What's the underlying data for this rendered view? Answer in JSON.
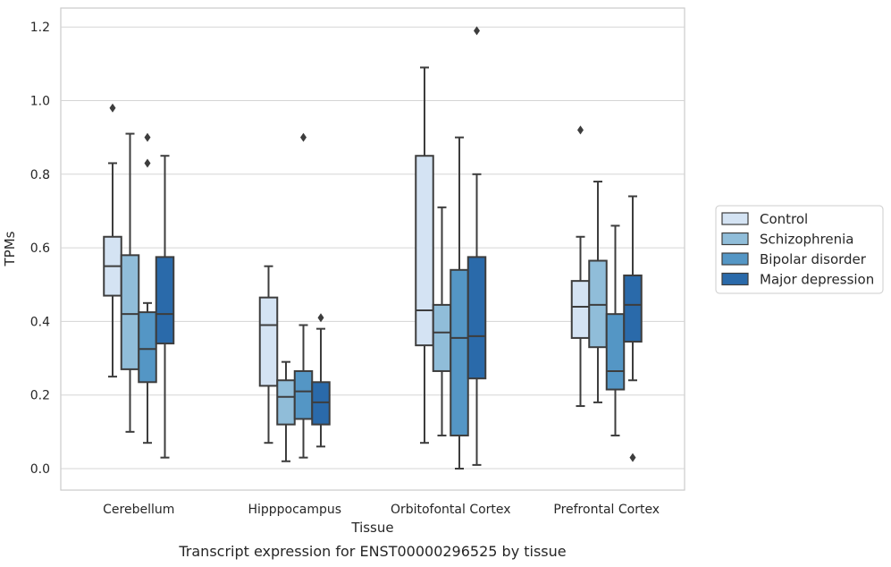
{
  "caption": "Transcript expression for ENST00000296525 by tissue",
  "chart_data": {
    "type": "boxplot",
    "xlabel": "Tissue",
    "ylabel": "TPMs",
    "ylim": [
      -0.06,
      1.25
    ],
    "yticks": [
      "0.0",
      "0.2",
      "0.4",
      "0.6",
      "0.8",
      "1.0",
      "1.2"
    ],
    "grid": true,
    "legend_position": "right",
    "categories": [
      "Cerebellum",
      "Hipppocampus",
      "Orbitofontal Cortex",
      "Prefrontal Cortex"
    ],
    "series": [
      {
        "name": "Control",
        "color": "#d4e3f3",
        "boxes": [
          {
            "whislo": 0.25,
            "q1": 0.47,
            "med": 0.55,
            "q3": 0.63,
            "whishi": 0.83,
            "fliers": [
              0.98
            ]
          },
          {
            "whislo": 0.07,
            "q1": 0.225,
            "med": 0.39,
            "q3": 0.465,
            "whishi": 0.55,
            "fliers": []
          },
          {
            "whislo": 0.07,
            "q1": 0.335,
            "med": 0.43,
            "q3": 0.85,
            "whishi": 1.09,
            "fliers": []
          },
          {
            "whislo": 0.17,
            "q1": 0.355,
            "med": 0.44,
            "q3": 0.51,
            "whishi": 0.63,
            "fliers": [
              0.92
            ]
          }
        ]
      },
      {
        "name": "Schizophrenia",
        "color": "#90bdd9",
        "boxes": [
          {
            "whislo": 0.1,
            "q1": 0.27,
            "med": 0.42,
            "q3": 0.58,
            "whishi": 0.91,
            "fliers": []
          },
          {
            "whislo": 0.02,
            "q1": 0.12,
            "med": 0.195,
            "q3": 0.24,
            "whishi": 0.29,
            "fliers": []
          },
          {
            "whislo": 0.09,
            "q1": 0.265,
            "med": 0.37,
            "q3": 0.445,
            "whishi": 0.71,
            "fliers": []
          },
          {
            "whislo": 0.18,
            "q1": 0.33,
            "med": 0.445,
            "q3": 0.565,
            "whishi": 0.78,
            "fliers": []
          }
        ]
      },
      {
        "name": "Bipolar disorder",
        "color": "#5496c5",
        "boxes": [
          {
            "whislo": 0.07,
            "q1": 0.235,
            "med": 0.325,
            "q3": 0.425,
            "whishi": 0.45,
            "fliers": [
              0.83,
              0.9
            ]
          },
          {
            "whislo": 0.03,
            "q1": 0.135,
            "med": 0.21,
            "q3": 0.265,
            "whishi": 0.39,
            "fliers": [
              0.9
            ]
          },
          {
            "whislo": 0.0,
            "q1": 0.09,
            "med": 0.355,
            "q3": 0.54,
            "whishi": 0.9,
            "fliers": []
          },
          {
            "whislo": 0.09,
            "q1": 0.215,
            "med": 0.265,
            "q3": 0.42,
            "whishi": 0.66,
            "fliers": []
          }
        ]
      },
      {
        "name": "Major depression",
        "color": "#2a6aaa",
        "boxes": [
          {
            "whislo": 0.03,
            "q1": 0.34,
            "med": 0.42,
            "q3": 0.575,
            "whishi": 0.85,
            "fliers": []
          },
          {
            "whislo": 0.06,
            "q1": 0.12,
            "med": 0.18,
            "q3": 0.235,
            "whishi": 0.38,
            "fliers": [
              0.41
            ]
          },
          {
            "whislo": 0.01,
            "q1": 0.245,
            "med": 0.36,
            "q3": 0.575,
            "whishi": 0.8,
            "fliers": [
              1.19
            ]
          },
          {
            "whislo": 0.24,
            "q1": 0.345,
            "med": 0.445,
            "q3": 0.525,
            "whishi": 0.74,
            "fliers": [
              0.03
            ]
          }
        ]
      }
    ]
  }
}
